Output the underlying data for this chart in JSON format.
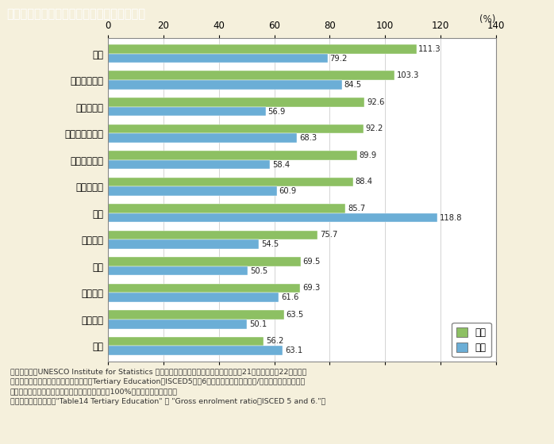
{
  "title": "第１－７－２図　高等教育在学率の国際比較",
  "countries": [
    "米国",
    "フィンランド",
    "ノルウェー",
    "オーストラリア",
    "スウェーデン",
    "デンマーク",
    "韓国",
    "イタリア",
    "英国",
    "オランダ",
    "フランス",
    "日本"
  ],
  "female": [
    111.3,
    103.3,
    92.6,
    92.2,
    89.9,
    88.4,
    85.7,
    75.7,
    69.5,
    69.3,
    63.5,
    56.2
  ],
  "male": [
    79.2,
    84.5,
    56.9,
    68.3,
    58.4,
    60.9,
    118.8,
    54.5,
    50.5,
    61.6,
    50.1,
    63.1
  ],
  "female_color": "#8dc063",
  "male_color": "#6baed6",
  "bg_color": "#f5f0dc",
  "title_bg_color": "#8b7355",
  "title_text_color": "#ffffff",
  "axis_bg_color": "#ffffff",
  "bar_height": 0.35,
  "xlim": [
    0,
    140
  ],
  "xticks": [
    0,
    20,
    40,
    60,
    80,
    100,
    120,
    140
  ],
  "xlabel": "(%)",
  "note_line1": "（備考）１．UNESCO Institute for Statistics ウェブサイトより作成。デンマークは平成21年，その他は22年時点。",
  "note_line2": "　　　　２．在学率は「高等教育機関（Tertiary Education，ISCED5及び6）の在学者数（全年齢）/中等教育に続く５歳上",
  "note_line3": "　　　　　　までの人口」で計算しているため，100%を超える場合がある。",
  "note_line4": "　　　　３．原典は，\"Table14 Tertiary Education\" の \"Gross enrolment ratio．ISCED 5 and 6.\"。",
  "legend_female": "女性",
  "legend_male": "男性"
}
